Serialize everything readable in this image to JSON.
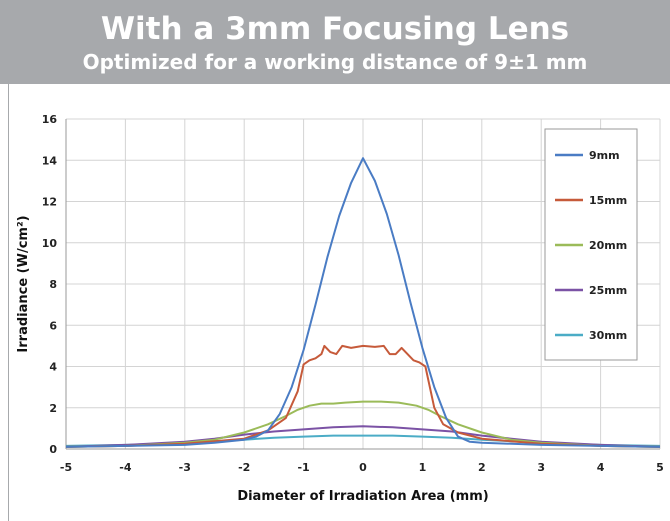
{
  "header": {
    "title": "With a 3mm Focusing Lens",
    "subtitle": "Optimized for a working distance of 9±1 mm"
  },
  "chart_data": {
    "type": "line",
    "title": "With a 3mm Focusing Lens",
    "subtitle": "Optimized for a working distance of 9±1 mm",
    "xlabel": "Diameter of Irradiation Area (mm)",
    "ylabel": "Irradiance (W/cm²)",
    "xlim": [
      -5,
      5
    ],
    "ylim": [
      0,
      16
    ],
    "xticks": [
      "-5",
      "-4",
      "-3",
      "-2",
      "-1",
      "0",
      "1",
      "2",
      "3",
      "4",
      "5"
    ],
    "yticks": [
      "0",
      "2",
      "4",
      "6",
      "8",
      "10",
      "12",
      "14",
      "16"
    ],
    "grid": true,
    "legend_position": "top-right",
    "series": [
      {
        "name": "9mm",
        "color": "#4a7cc4",
        "points": [
          [
            -5,
            0.1
          ],
          [
            -4,
            0.15
          ],
          [
            -3,
            0.2
          ],
          [
            -2.5,
            0.3
          ],
          [
            -2,
            0.45
          ],
          [
            -1.8,
            0.6
          ],
          [
            -1.6,
            0.9
          ],
          [
            -1.4,
            1.7
          ],
          [
            -1.2,
            3.0
          ],
          [
            -1.0,
            4.8
          ],
          [
            -0.8,
            7.0
          ],
          [
            -0.6,
            9.3
          ],
          [
            -0.4,
            11.3
          ],
          [
            -0.2,
            12.9
          ],
          [
            0,
            14.1
          ],
          [
            0.2,
            13.0
          ],
          [
            0.4,
            11.4
          ],
          [
            0.6,
            9.4
          ],
          [
            0.8,
            7.1
          ],
          [
            1.0,
            4.9
          ],
          [
            1.2,
            3.0
          ],
          [
            1.4,
            1.5
          ],
          [
            1.6,
            0.6
          ],
          [
            1.8,
            0.35
          ],
          [
            2,
            0.3
          ],
          [
            2.5,
            0.25
          ],
          [
            3,
            0.2
          ],
          [
            4,
            0.15
          ],
          [
            5,
            0.1
          ]
        ]
      },
      {
        "name": "15mm",
        "color": "#c65a3a",
        "points": [
          [
            -5,
            0.1
          ],
          [
            -4,
            0.15
          ],
          [
            -3,
            0.25
          ],
          [
            -2,
            0.5
          ],
          [
            -1.6,
            0.9
          ],
          [
            -1.3,
            1.5
          ],
          [
            -1.1,
            2.8
          ],
          [
            -1.0,
            4.1
          ],
          [
            -0.9,
            4.3
          ],
          [
            -0.8,
            4.4
          ],
          [
            -0.7,
            4.6
          ],
          [
            -0.65,
            5.0
          ],
          [
            -0.55,
            4.7
          ],
          [
            -0.45,
            4.6
          ],
          [
            -0.35,
            5.0
          ],
          [
            -0.2,
            4.9
          ],
          [
            0,
            5.0
          ],
          [
            0.2,
            4.95
          ],
          [
            0.35,
            5.0
          ],
          [
            0.45,
            4.6
          ],
          [
            0.55,
            4.6
          ],
          [
            0.65,
            4.9
          ],
          [
            0.75,
            4.6
          ],
          [
            0.85,
            4.3
          ],
          [
            0.95,
            4.2
          ],
          [
            1.05,
            4.0
          ],
          [
            1.2,
            2.0
          ],
          [
            1.35,
            1.2
          ],
          [
            1.6,
            0.8
          ],
          [
            2,
            0.5
          ],
          [
            3,
            0.25
          ],
          [
            4,
            0.15
          ],
          [
            5,
            0.1
          ]
        ]
      },
      {
        "name": "20mm",
        "color": "#9bbb59",
        "points": [
          [
            -5,
            0.1
          ],
          [
            -4,
            0.15
          ],
          [
            -3,
            0.3
          ],
          [
            -2.5,
            0.45
          ],
          [
            -2,
            0.8
          ],
          [
            -1.6,
            1.2
          ],
          [
            -1.3,
            1.6
          ],
          [
            -1.1,
            1.9
          ],
          [
            -0.9,
            2.1
          ],
          [
            -0.7,
            2.2
          ],
          [
            -0.5,
            2.2
          ],
          [
            -0.3,
            2.25
          ],
          [
            0,
            2.3
          ],
          [
            0.3,
            2.3
          ],
          [
            0.6,
            2.25
          ],
          [
            0.9,
            2.1
          ],
          [
            1.1,
            1.9
          ],
          [
            1.3,
            1.6
          ],
          [
            1.6,
            1.2
          ],
          [
            2,
            0.8
          ],
          [
            2.5,
            0.45
          ],
          [
            3,
            0.3
          ],
          [
            4,
            0.15
          ],
          [
            5,
            0.1
          ]
        ]
      },
      {
        "name": "25mm",
        "color": "#7b52a5",
        "points": [
          [
            -5,
            0.1
          ],
          [
            -4,
            0.2
          ],
          [
            -3,
            0.35
          ],
          [
            -2.5,
            0.5
          ],
          [
            -2,
            0.7
          ],
          [
            -1.5,
            0.85
          ],
          [
            -1,
            0.95
          ],
          [
            -0.5,
            1.05
          ],
          [
            0,
            1.1
          ],
          [
            0.5,
            1.05
          ],
          [
            1,
            0.95
          ],
          [
            1.5,
            0.85
          ],
          [
            2,
            0.65
          ],
          [
            2.5,
            0.5
          ],
          [
            3,
            0.35
          ],
          [
            4,
            0.2
          ],
          [
            5,
            0.1
          ]
        ]
      },
      {
        "name": "30mm",
        "color": "#4bacc6",
        "points": [
          [
            -5,
            0.15
          ],
          [
            -4,
            0.2
          ],
          [
            -3,
            0.3
          ],
          [
            -2.5,
            0.38
          ],
          [
            -2,
            0.45
          ],
          [
            -1.5,
            0.55
          ],
          [
            -1,
            0.6
          ],
          [
            -0.5,
            0.65
          ],
          [
            0,
            0.65
          ],
          [
            0.5,
            0.65
          ],
          [
            1,
            0.6
          ],
          [
            1.5,
            0.55
          ],
          [
            2,
            0.45
          ],
          [
            2.5,
            0.38
          ],
          [
            3,
            0.3
          ],
          [
            4,
            0.2
          ],
          [
            5,
            0.15
          ]
        ]
      }
    ]
  }
}
